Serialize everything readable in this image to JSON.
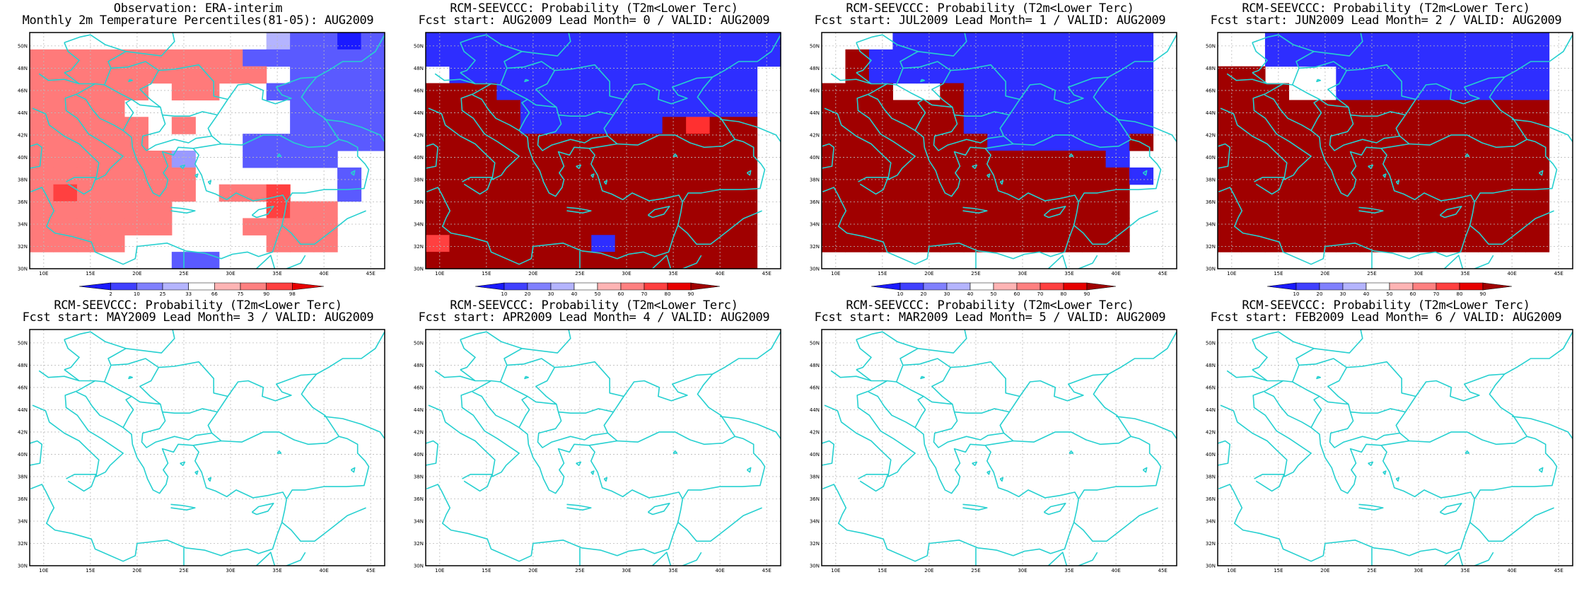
{
  "panels": [
    {
      "id": 0,
      "title1": "Observation: ERA-interim",
      "title2": "Monthly 2m Temperature Percentiles(81-05): AUG2009",
      "colorbar": "perc",
      "filled": true
    },
    {
      "id": 1,
      "title1": "RCM-SEEVCCC: Probability (T2m<Lower Terc)",
      "title2": "Fcst start: AUG2009  Lead Month= 0 / VALID: AUG2009",
      "colorbar": "prob",
      "filled": true
    },
    {
      "id": 2,
      "title1": "RCM-SEEVCCC: Probability (T2m<Lower Terc)",
      "title2": "Fcst start: JUL2009  Lead Month= 1 / VALID: AUG2009",
      "colorbar": "prob",
      "filled": true
    },
    {
      "id": 3,
      "title1": "RCM-SEEVCCC: Probability (T2m<Lower Terc)",
      "title2": "Fcst start: JUN2009  Lead Month= 2 / VALID: AUG2009",
      "colorbar": "prob",
      "filled": true
    },
    {
      "id": 4,
      "title1": "RCM-SEEVCCC: Probability (T2m<Lower Terc)",
      "title2": "Fcst start: MAY2009  Lead Month= 3 / VALID: AUG2009",
      "colorbar": null,
      "filled": false
    },
    {
      "id": 5,
      "title1": "RCM-SEEVCCC: Probability (T2m<Lower Terc)",
      "title2": "Fcst start: APR2009  Lead Month= 4 / VALID: AUG2009",
      "colorbar": null,
      "filled": false
    },
    {
      "id": 6,
      "title1": "RCM-SEEVCCC: Probability (T2m<Lower Terc)",
      "title2": "Fcst start: MAR2009  Lead Month= 5 / VALID: AUG2009",
      "colorbar": null,
      "filled": false
    },
    {
      "id": 7,
      "title1": "RCM-SEEVCCC: Probability (T2m<Lower Terc)",
      "title2": "Fcst start: FEB2009  Lead Month= 6 / VALID: AUG2009",
      "colorbar": null,
      "filled": false
    }
  ],
  "axes": {
    "lon_labels": [
      "10E",
      "15E",
      "20E",
      "25E",
      "30E",
      "35E",
      "40E",
      "45E"
    ],
    "lat_labels": [
      "30N",
      "32N",
      "34N",
      "36N",
      "38N",
      "40N",
      "42N",
      "44N",
      "46N",
      "48N",
      "50N"
    ],
    "lon_range": [
      8.5,
      46.5
    ],
    "lat_range": [
      30,
      51.2
    ]
  },
  "colorbars": {
    "perc": {
      "labels": [
        "2",
        "10",
        "25",
        "33",
        "66",
        "75",
        "90",
        "98"
      ],
      "colors": [
        "#1a1aff",
        "#4040ff",
        "#8080ff",
        "#b4b4ff",
        "#ffffff",
        "#ffb4b4",
        "#ff8080",
        "#ff4040",
        "#e60000"
      ]
    },
    "prob": {
      "labels": [
        "10",
        "20",
        "30",
        "40",
        "50",
        "60",
        "70",
        "80",
        "90"
      ],
      "colors": [
        "#1a1aff",
        "#4040ff",
        "#8080ff",
        "#b4b4ff",
        "#ffffff",
        "#ffb4b4",
        "#ff8080",
        "#ff4040",
        "#e60000",
        "#a00000"
      ]
    }
  },
  "fields": {
    "p0": [
      "WWWWWWWWWWHBBDB",
      "LLLLLLLLLBBBBBB",
      "LLLLLLLLLLWBBBB",
      "LLLLLWLLWWBBBBB",
      "LLLLWWWWWWWBBBB",
      "LLLLLWLWWWWBBBB",
      "LLLLLWWWWBBBBBB",
      "LLLLLLSWWBBBBWW",
      "LLLLLLLWWWWWWBW",
      "LRLLLLLWLLRWWBW",
      "LLLLLLWWWWRLLWW",
      "LLLLLLWWWLLLLWW",
      "LLLLWWWWWWLLLWW",
      "WWWWWWBBWWWWWWW"
    ],
    "p1": [
      "BBBBBBBBBBBBBBB",
      "BBBBBBBBBBBBBBB",
      "WBBBBBBBBBBBBBW",
      "DDDBBBBBBBBBBBW",
      "DDDDBBBBBBBBBBW",
      "DDDDBBBBBBDMDDW",
      "DDDDDDDDDDDDDDW",
      "DDDDDDDDDDDDDDW",
      "DDDDDDDDDDDDDDW",
      "DDDDDDDDDDDDDDW",
      "DDDDDDDDDDDDDDW",
      "DDDDDDDDDDDDDDW",
      "RDDDDDDBDDDDDDW",
      "DDDDDDDDDDDDDDW"
    ],
    "p2": [
      "WWWBBBBBBBBBBBW",
      "WDBBBBBBBBBBBBW",
      "WDBBBBBBBBBBBBW",
      "DDDWWDBBBBBBBBW",
      "DDDDDDBBBBBBBBW",
      "DDDDDDBBBBBBBBW",
      "DDDDDDDBBBBBBDW",
      "DDDDDDDDDDDDBWW",
      "DDDDDDDDDDDDDBW",
      "DDDDDDDDDDDDDWW",
      "DDDDDDDDDDDDDWW",
      "DDDDDDDDDDDDDWW",
      "DDDDDDDDDDDDDWW",
      "WWWWWWWWWWWWWWW"
    ],
    "p3": [
      "WWBBBBBBBBBBBBW",
      "WWBBBBBBBBBBBBW",
      "DDWWWBBBBBBBBBW",
      "DDDWWBBBBBBBBBW",
      "DDDDDDDDDDDDDDW",
      "DDDDDDDDDDDDDDW",
      "DDDDDDDDDDDDDDW",
      "DDDDDDDDDDDDDDW",
      "DDDDDDDDDDDDDDW",
      "DDDDDDDDDDDDDDW",
      "DDDDDDDDDDDDDDW",
      "DDDDDDDDDDDDDDW",
      "DDDDDDDDDDDDDDW",
      "WWWWWWWWWWWWWWW"
    ]
  },
  "colors": {
    "coast": "#26d0d0",
    "grid": "#bbbbbb",
    "frame": "#000000"
  }
}
